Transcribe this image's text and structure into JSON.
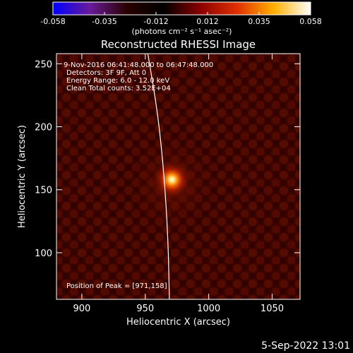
{
  "colorbar": {
    "ticks": [
      "-0.058",
      "-0.035",
      "-0.012",
      "0.012",
      "0.035",
      "0.058"
    ],
    "unit_label": "(photons cm⁻² s⁻¹ asec⁻²)",
    "colormap": [
      "#0000ff",
      "#6a1a9a",
      "#2a0000",
      "#000000",
      "#8a0000",
      "#e03000",
      "#ffb000",
      "#ffffff"
    ]
  },
  "chart_data": {
    "type": "heatmap",
    "title": "Reconstructed RHESSI Image",
    "xlabel": "Heliocentric X (arcsec)",
    "ylabel": "Heliocentric Y (arcsec)",
    "xlim": [
      880,
      1072
    ],
    "ylim": [
      63,
      258
    ],
    "xticks": [
      900,
      950,
      1000,
      1050
    ],
    "yticks": [
      100,
      150,
      200,
      250
    ],
    "peak": [
      971,
      158
    ],
    "value_range": [
      -0.058,
      0.058
    ],
    "limb_curve": [
      [
        952,
        258
      ],
      [
        960,
        210
      ],
      [
        965,
        160
      ],
      [
        968,
        110
      ],
      [
        969,
        63
      ]
    ],
    "annotations": [
      "9-Nov-2016 06:41:48.000 to 06:47:48.000",
      "Detectors: 3F 9F, Att 0",
      "Energy Range: 6.0 - 12.0 keV",
      "Clean    Total counts: 3.52E+04"
    ],
    "peak_label": "Position of Peak = [971,158]"
  },
  "footer": {
    "date": "5-Sep-2022 13:01"
  }
}
